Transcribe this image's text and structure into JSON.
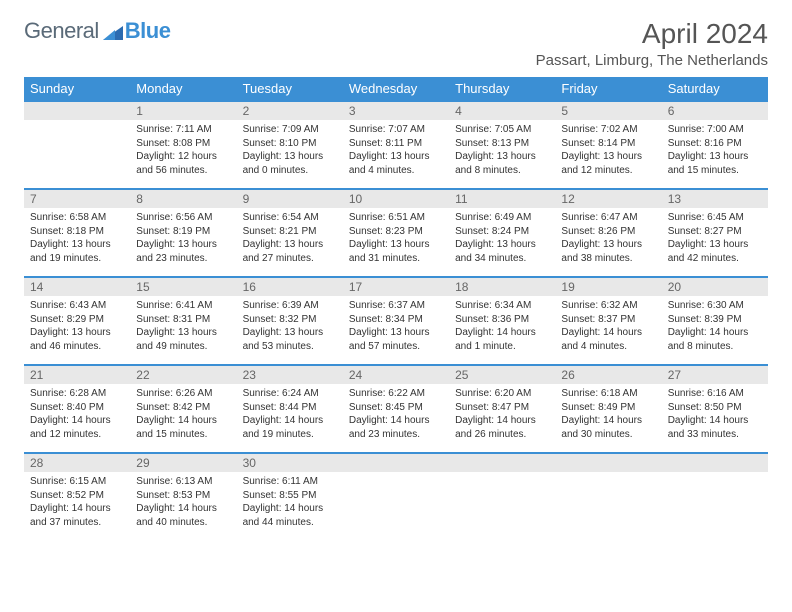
{
  "logo": {
    "part1": "General",
    "part2": "Blue"
  },
  "title": "April 2024",
  "location": "Passart, Limburg, The Netherlands",
  "colors": {
    "header_bg": "#3b8fd4",
    "header_text": "#ffffff",
    "daynum_bg": "#e8e8e8",
    "daynum_text": "#666666",
    "body_text": "#333333",
    "logo_gray": "#5a6a78",
    "logo_blue": "#3b8fd4",
    "border": "#3b8fd4"
  },
  "weekdays": [
    "Sunday",
    "Monday",
    "Tuesday",
    "Wednesday",
    "Thursday",
    "Friday",
    "Saturday"
  ],
  "weeks": [
    [
      null,
      {
        "n": "1",
        "sr": "7:11 AM",
        "ss": "8:08 PM",
        "dl": "12 hours and 56 minutes."
      },
      {
        "n": "2",
        "sr": "7:09 AM",
        "ss": "8:10 PM",
        "dl": "13 hours and 0 minutes."
      },
      {
        "n": "3",
        "sr": "7:07 AM",
        "ss": "8:11 PM",
        "dl": "13 hours and 4 minutes."
      },
      {
        "n": "4",
        "sr": "7:05 AM",
        "ss": "8:13 PM",
        "dl": "13 hours and 8 minutes."
      },
      {
        "n": "5",
        "sr": "7:02 AM",
        "ss": "8:14 PM",
        "dl": "13 hours and 12 minutes."
      },
      {
        "n": "6",
        "sr": "7:00 AM",
        "ss": "8:16 PM",
        "dl": "13 hours and 15 minutes."
      }
    ],
    [
      {
        "n": "7",
        "sr": "6:58 AM",
        "ss": "8:18 PM",
        "dl": "13 hours and 19 minutes."
      },
      {
        "n": "8",
        "sr": "6:56 AM",
        "ss": "8:19 PM",
        "dl": "13 hours and 23 minutes."
      },
      {
        "n": "9",
        "sr": "6:54 AM",
        "ss": "8:21 PM",
        "dl": "13 hours and 27 minutes."
      },
      {
        "n": "10",
        "sr": "6:51 AM",
        "ss": "8:23 PM",
        "dl": "13 hours and 31 minutes."
      },
      {
        "n": "11",
        "sr": "6:49 AM",
        "ss": "8:24 PM",
        "dl": "13 hours and 34 minutes."
      },
      {
        "n": "12",
        "sr": "6:47 AM",
        "ss": "8:26 PM",
        "dl": "13 hours and 38 minutes."
      },
      {
        "n": "13",
        "sr": "6:45 AM",
        "ss": "8:27 PM",
        "dl": "13 hours and 42 minutes."
      }
    ],
    [
      {
        "n": "14",
        "sr": "6:43 AM",
        "ss": "8:29 PM",
        "dl": "13 hours and 46 minutes."
      },
      {
        "n": "15",
        "sr": "6:41 AM",
        "ss": "8:31 PM",
        "dl": "13 hours and 49 minutes."
      },
      {
        "n": "16",
        "sr": "6:39 AM",
        "ss": "8:32 PM",
        "dl": "13 hours and 53 minutes."
      },
      {
        "n": "17",
        "sr": "6:37 AM",
        "ss": "8:34 PM",
        "dl": "13 hours and 57 minutes."
      },
      {
        "n": "18",
        "sr": "6:34 AM",
        "ss": "8:36 PM",
        "dl": "14 hours and 1 minute."
      },
      {
        "n": "19",
        "sr": "6:32 AM",
        "ss": "8:37 PM",
        "dl": "14 hours and 4 minutes."
      },
      {
        "n": "20",
        "sr": "6:30 AM",
        "ss": "8:39 PM",
        "dl": "14 hours and 8 minutes."
      }
    ],
    [
      {
        "n": "21",
        "sr": "6:28 AM",
        "ss": "8:40 PM",
        "dl": "14 hours and 12 minutes."
      },
      {
        "n": "22",
        "sr": "6:26 AM",
        "ss": "8:42 PM",
        "dl": "14 hours and 15 minutes."
      },
      {
        "n": "23",
        "sr": "6:24 AM",
        "ss": "8:44 PM",
        "dl": "14 hours and 19 minutes."
      },
      {
        "n": "24",
        "sr": "6:22 AM",
        "ss": "8:45 PM",
        "dl": "14 hours and 23 minutes."
      },
      {
        "n": "25",
        "sr": "6:20 AM",
        "ss": "8:47 PM",
        "dl": "14 hours and 26 minutes."
      },
      {
        "n": "26",
        "sr": "6:18 AM",
        "ss": "8:49 PM",
        "dl": "14 hours and 30 minutes."
      },
      {
        "n": "27",
        "sr": "6:16 AM",
        "ss": "8:50 PM",
        "dl": "14 hours and 33 minutes."
      }
    ],
    [
      {
        "n": "28",
        "sr": "6:15 AM",
        "ss": "8:52 PM",
        "dl": "14 hours and 37 minutes."
      },
      {
        "n": "29",
        "sr": "6:13 AM",
        "ss": "8:53 PM",
        "dl": "14 hours and 40 minutes."
      },
      {
        "n": "30",
        "sr": "6:11 AM",
        "ss": "8:55 PM",
        "dl": "14 hours and 44 minutes."
      },
      null,
      null,
      null,
      null
    ]
  ],
  "labels": {
    "sunrise": "Sunrise:",
    "sunset": "Sunset:",
    "daylight": "Daylight:"
  }
}
